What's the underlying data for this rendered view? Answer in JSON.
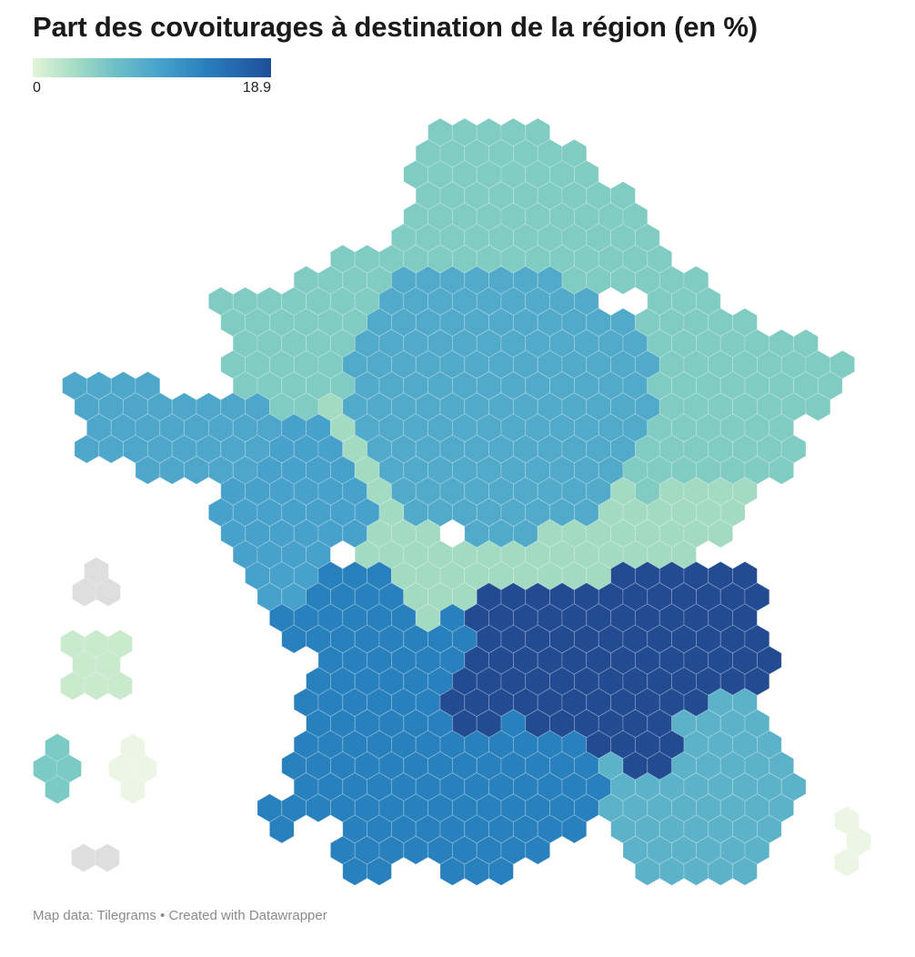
{
  "title": "Part des covoiturages à destination de la région (en %)",
  "legend": {
    "min_label": "0",
    "max_label": "18.9",
    "colors": [
      "#e3f4d6",
      "#a6dcc6",
      "#6fc1c7",
      "#4aa4cc",
      "#2a80bd",
      "#1e4f98"
    ]
  },
  "footer": "Map data: Tilegrams • Created with Datawrapper",
  "map": {
    "type": "hexagonal-tilegram",
    "no_data_color": "#dedede",
    "region_colors": {
      "north": "#80cbc2",
      "northwest": "#80cbc2",
      "northeast": "#80cbc2",
      "center": "#52aaca",
      "brittany": "#4ea7cb",
      "west": "#47a1cb",
      "center_belt": "#a3dac2",
      "southwest": "#2880bd",
      "south": "#2880bd",
      "east_central": "#224b92",
      "southeast": "#5cb2c8",
      "island_east": "#ecf6e5",
      "overseas_1": "#dedede",
      "overseas_2": "#caeacd",
      "overseas_3": "#7ccac5",
      "overseas_4": "#ecf6e5",
      "overseas_5": "#dedede"
    }
  }
}
